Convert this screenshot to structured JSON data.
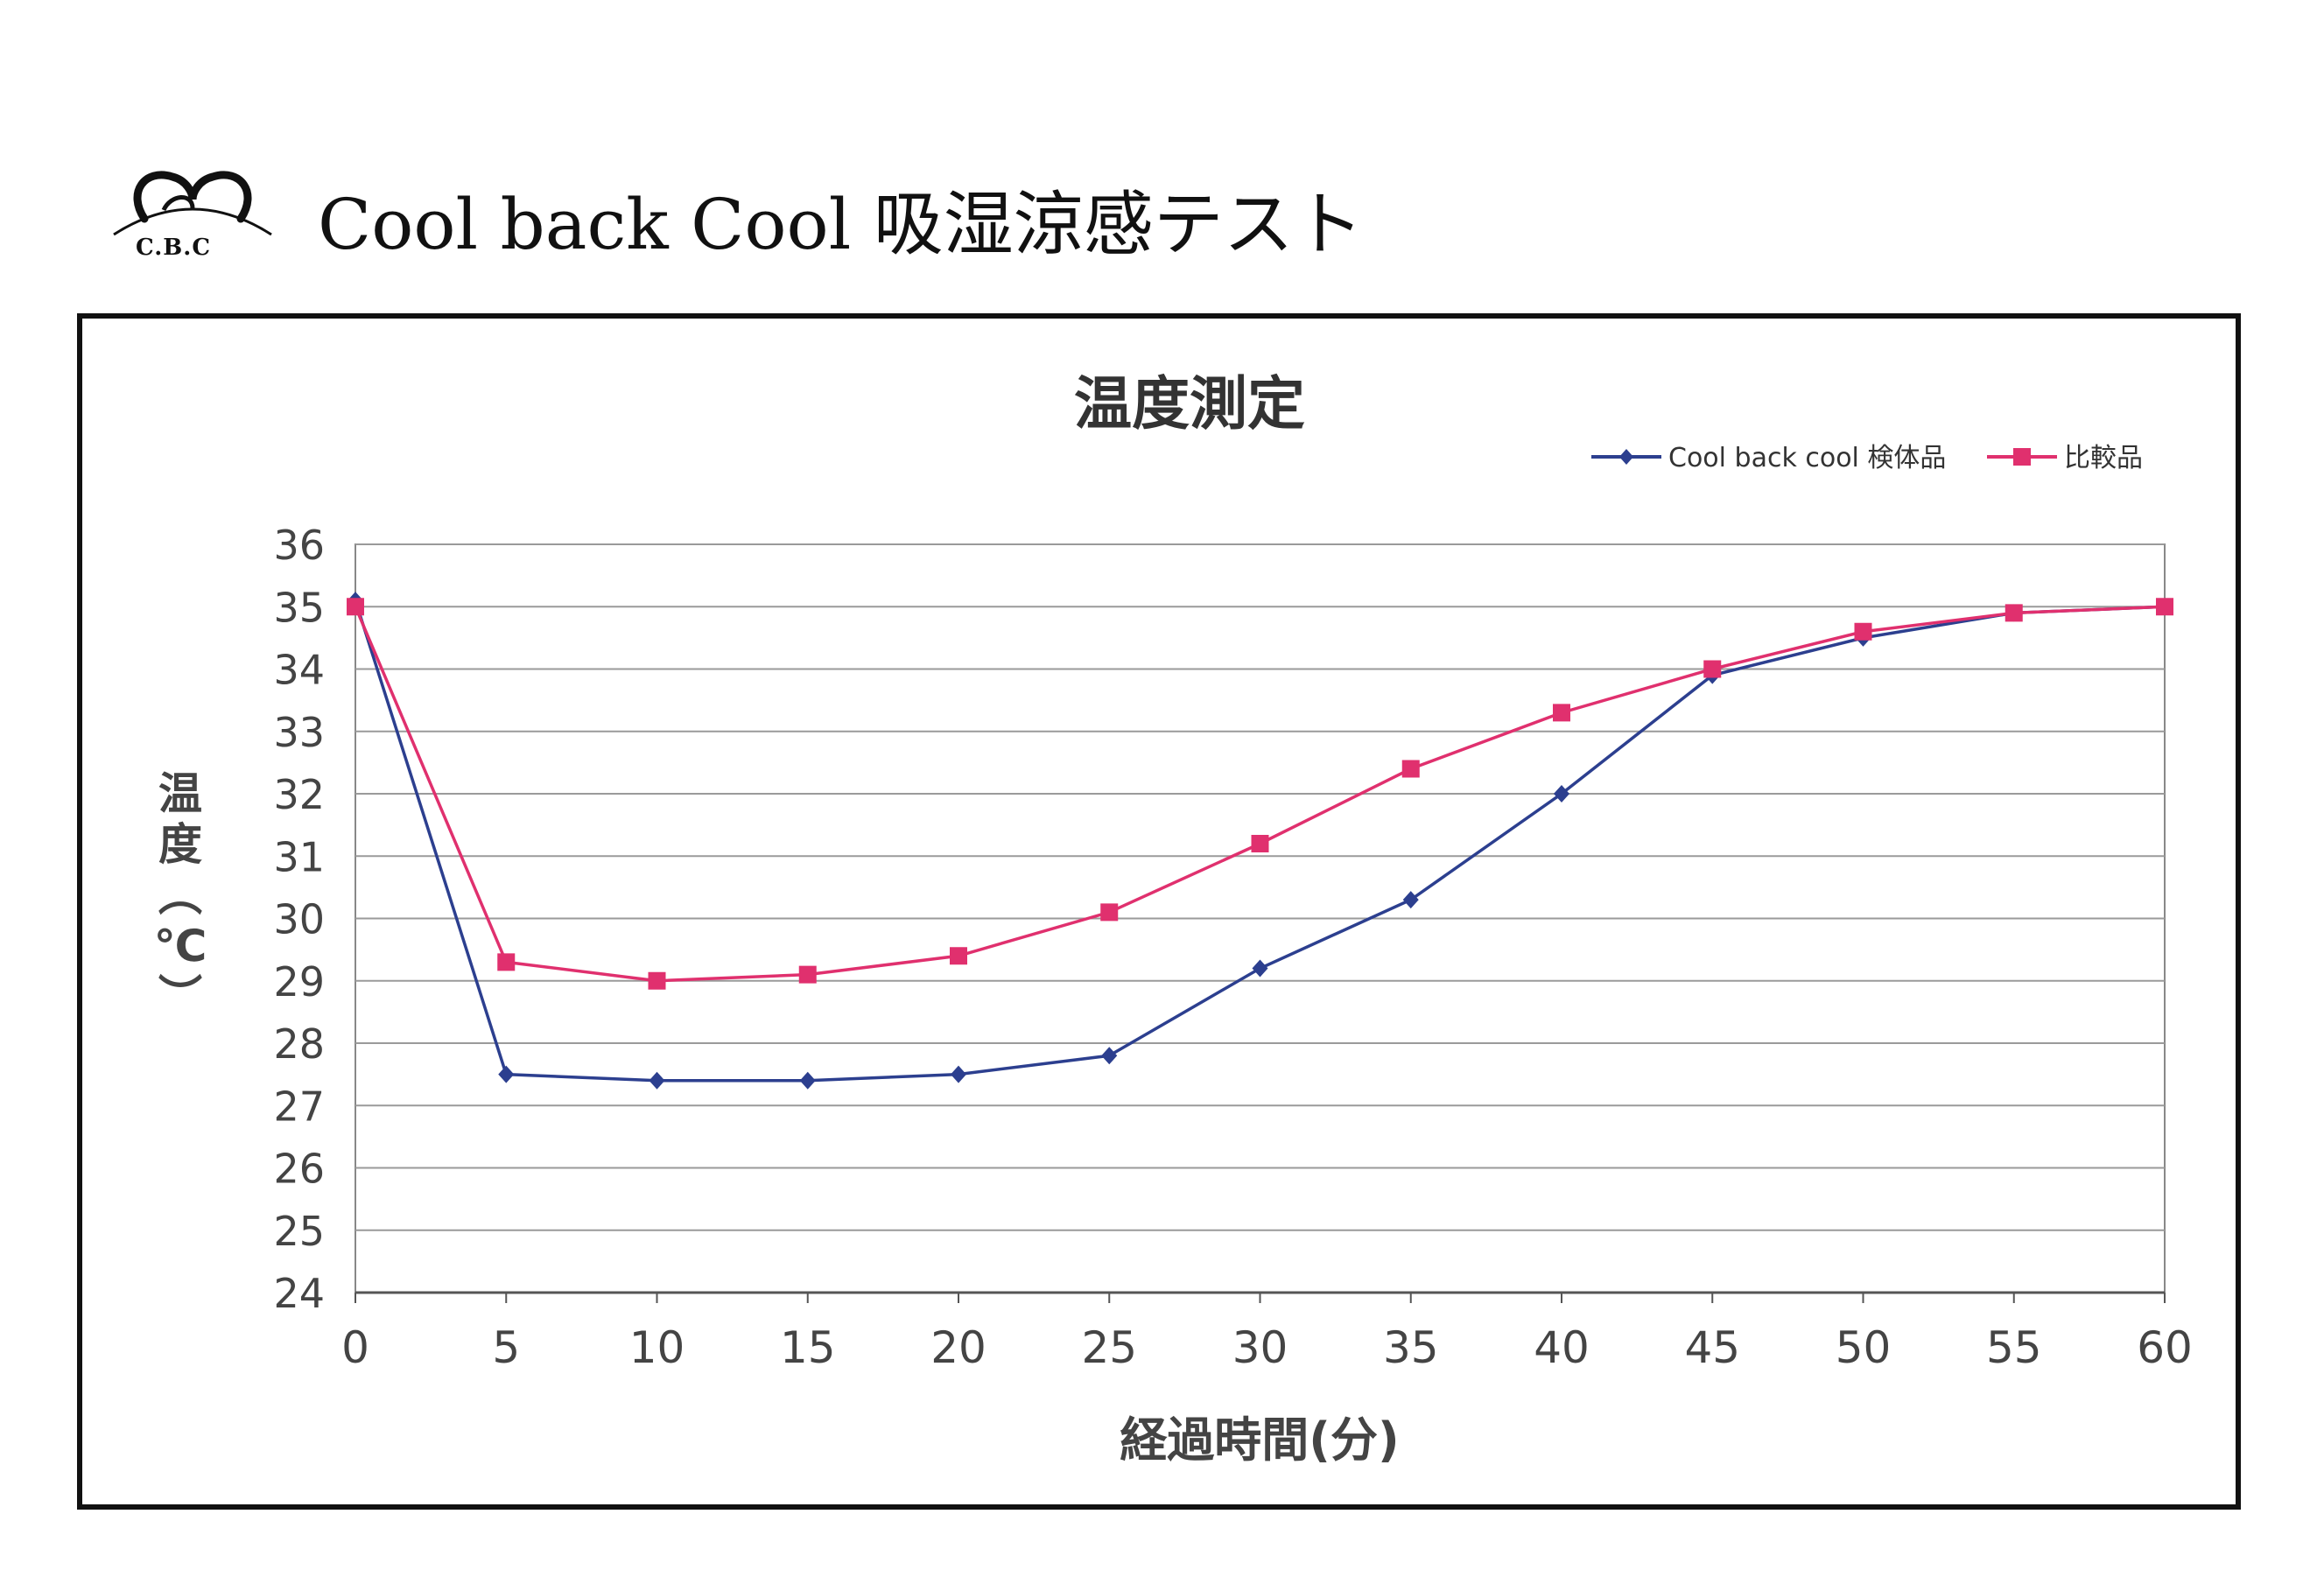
{
  "header": {
    "logo_text": "C.B.C",
    "title": "Cool back Cool 吸湿涼感テスト"
  },
  "colors": {
    "series_1": "#2c3f8f",
    "series_2": "#e0306e",
    "grid": "#9a9a9a",
    "axis_text": "#444444"
  },
  "chart_data": {
    "type": "line",
    "title": "温度測定",
    "xlabel": "経過時間(分)",
    "ylabel": "温度(℃)",
    "ylabel_chars": [
      "温",
      "度",
      "︵",
      "℃",
      "︶"
    ],
    "x": [
      0,
      5,
      10,
      15,
      20,
      25,
      30,
      35,
      40,
      45,
      50,
      55,
      60
    ],
    "xticks": [
      "0",
      "5",
      "10",
      "15",
      "20",
      "25",
      "30",
      "35",
      "40",
      "45",
      "50",
      "55",
      "60"
    ],
    "yticks": [
      "24",
      "25",
      "26",
      "27",
      "28",
      "29",
      "30",
      "31",
      "32",
      "33",
      "34",
      "35",
      "36"
    ],
    "xlim": [
      0,
      60
    ],
    "ylim": [
      24,
      36
    ],
    "grid": true,
    "legend_position": "top-right",
    "series": [
      {
        "name": "Cool back cool 検体品",
        "marker": "diamond",
        "color": "#2c3f8f",
        "values": [
          35.1,
          27.5,
          27.4,
          27.4,
          27.5,
          27.8,
          29.2,
          30.3,
          32.0,
          33.9,
          34.5,
          34.9,
          35.0
        ]
      },
      {
        "name": "比較品",
        "marker": "square",
        "color": "#e0306e",
        "values": [
          35.0,
          29.3,
          29.0,
          29.1,
          29.4,
          30.1,
          31.2,
          32.4,
          33.3,
          34.0,
          34.6,
          34.9,
          35.0
        ]
      }
    ]
  }
}
